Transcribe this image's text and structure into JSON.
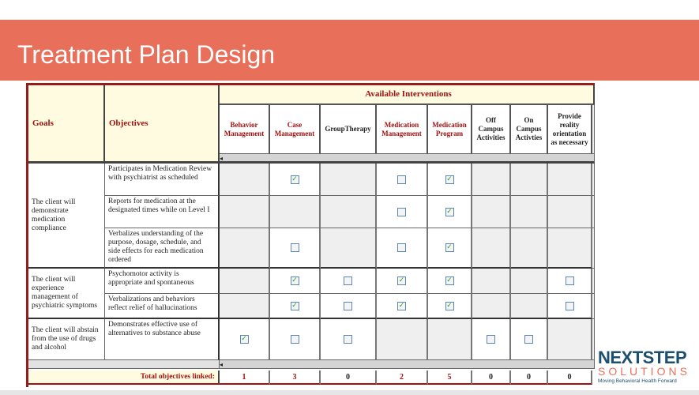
{
  "title": "Treatment Plan Design",
  "headers": {
    "goals": "Goals",
    "objectives": "Objectives",
    "available": "Available Interventions"
  },
  "interventions": [
    {
      "label": "Behavior Management",
      "red": true
    },
    {
      "label": "Case Management",
      "red": true
    },
    {
      "label": "GroupTherapy",
      "red": false
    },
    {
      "label": "Medication Management",
      "red": true
    },
    {
      "label": "Medication Program",
      "red": true
    },
    {
      "label": "Off Campus Activities",
      "red": false
    },
    {
      "label": "On Campus Activties",
      "red": false
    },
    {
      "label": "Provide reality orientation as necessary",
      "red": false
    }
  ],
  "goals": [
    {
      "text": "The client will demonstrate medication compliance",
      "rows": [
        0,
        1,
        2
      ]
    },
    {
      "text": "The client will experience management of psychiatric symptoms",
      "rows": [
        3,
        4
      ]
    },
    {
      "text": "The client will abstain from the use of drugs and alcohol",
      "rows": [
        5
      ]
    }
  ],
  "objectives": [
    {
      "text": "Participates in Medication Review with psychiatrist as scheduled",
      "cells": [
        "na",
        "checked",
        "na",
        "unchecked",
        "checked",
        "na",
        "na",
        "na"
      ]
    },
    {
      "text": "Reports for medication at the designated times while on Level I",
      "cells": [
        "na",
        "na",
        "na",
        "unchecked",
        "checked",
        "na",
        "na",
        "na"
      ]
    },
    {
      "text": "Verbalizes understanding of the purpose, dosage, schedule, and side effects for each medication ordered",
      "cells": [
        "na",
        "unchecked",
        "na",
        "unchecked",
        "checked",
        "na",
        "na",
        "na"
      ]
    },
    {
      "text": "Psychomotor activity is appropriate and spontaneous",
      "cells": [
        "na",
        "checked",
        "unchecked",
        "checked",
        "checked",
        "na",
        "na",
        "unchecked"
      ]
    },
    {
      "text": "Verbalizations and behaviors reflect relief of hallucinations",
      "cells": [
        "na",
        "checked",
        "unchecked",
        "checked",
        "checked",
        "na",
        "na",
        "unchecked"
      ]
    },
    {
      "text": "Demonstrates effective use of alternatives to substance abuse",
      "cells": [
        "checked",
        "unchecked",
        "unchecked",
        "na",
        "na",
        "unchecked",
        "unchecked",
        "na"
      ]
    }
  ],
  "totals": {
    "label": "Total objectives linked:",
    "values": [
      "1",
      "3",
      "0",
      "2",
      "5",
      "0",
      "0",
      "0"
    ]
  },
  "logo": {
    "line1": "NEXTSTEP",
    "line2": "SOLUTIONS",
    "tagline": "Moving Behavioral Health Forward"
  },
  "colors": {
    "banner": "#e8705a",
    "accent": "#a31010",
    "logo_blue": "#1c4f6b"
  }
}
